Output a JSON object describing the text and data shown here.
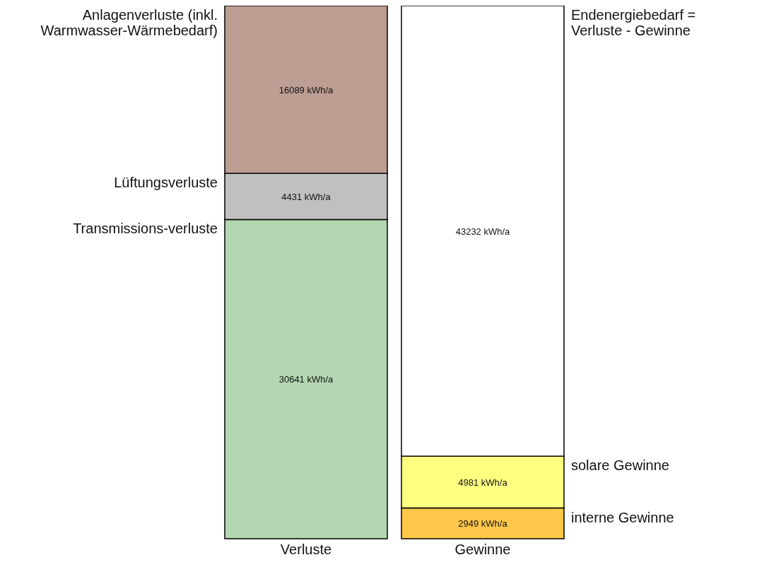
{
  "chart_data": {
    "type": "bar",
    "stacked": true,
    "categories": [
      "Verluste",
      "Gewinne"
    ],
    "series": [
      {
        "name": "Transmissions-verluste",
        "color": "#b3d7b0",
        "values": [
          30641,
          null
        ],
        "value_labels": [
          "30641 kWh/a",
          null
        ]
      },
      {
        "name": "Lüftungsverluste",
        "color": "#c0c0c0",
        "values": [
          4431,
          null
        ],
        "value_labels": [
          "4431 kWh/a",
          null
        ]
      },
      {
        "name": "Anlagenverluste (inkl. Warmwasser-Wärmebedarf)",
        "color": "#bd9e92",
        "values": [
          16089,
          null
        ],
        "value_labels": [
          "16089 kWh/a",
          null
        ]
      },
      {
        "name": "interne Gewinne",
        "color": "#ffc84a",
        "values": [
          null,
          2949
        ],
        "value_labels": [
          null,
          "2949 kWh/a"
        ]
      },
      {
        "name": "solare Gewinne",
        "color": "#ffff80",
        "values": [
          null,
          4981
        ],
        "value_labels": [
          null,
          "4981 kWh/a"
        ]
      },
      {
        "name": "Endenergiebedarf = Verluste - Gewinne",
        "color": "#ffffff",
        "values": [
          null,
          43232
        ],
        "value_labels": [
          null,
          "43232 kWh/a"
        ]
      }
    ]
  }
}
